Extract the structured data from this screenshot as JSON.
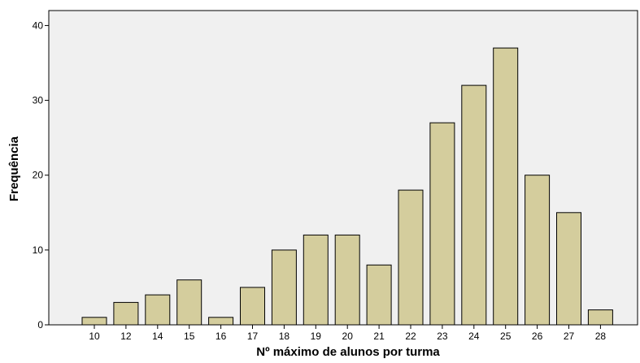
{
  "chart_data": {
    "type": "bar",
    "title": "",
    "xlabel": "Nº máximo de alunos por turma",
    "ylabel": "Frequência",
    "categories": [
      "10",
      "12",
      "14",
      "15",
      "16",
      "17",
      "18",
      "19",
      "20",
      "21",
      "22",
      "23",
      "24",
      "25",
      "26",
      "27",
      "28"
    ],
    "values": [
      1,
      3,
      4,
      6,
      1,
      5,
      10,
      12,
      12,
      8,
      18,
      27,
      32,
      37,
      20,
      15,
      2
    ],
    "ylim": [
      0,
      42
    ],
    "yticks": [
      0,
      10,
      20,
      30,
      40
    ],
    "grid": false,
    "legend": "none",
    "colors": {
      "bar_fill": "#d4cd9d",
      "bar_stroke": "#000000",
      "plot_background": "#f0f0f0",
      "axis": "#000000"
    }
  }
}
